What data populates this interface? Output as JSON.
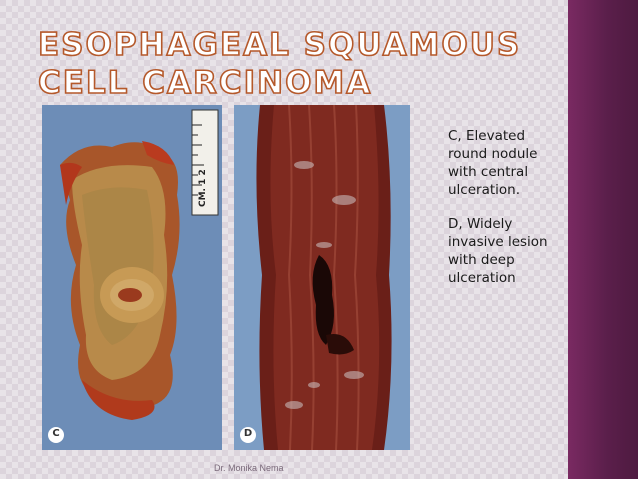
{
  "slide": {
    "title": "Esophageal Squamous Cell Carcinoma",
    "captions": {
      "c": "C, Elevated round nodule with central ulceration.",
      "d": "D, Widely invasive lesion with deep ulceration"
    },
    "footer": "Dr. Monika Nema"
  },
  "figure": {
    "panel_c_label": "C",
    "panel_d_label": "D",
    "ruler_text": "CM. 1   2"
  },
  "colors": {
    "accent": "#b5592b",
    "sidebar": "#5b1f4b",
    "background": "#dcd4dc"
  }
}
